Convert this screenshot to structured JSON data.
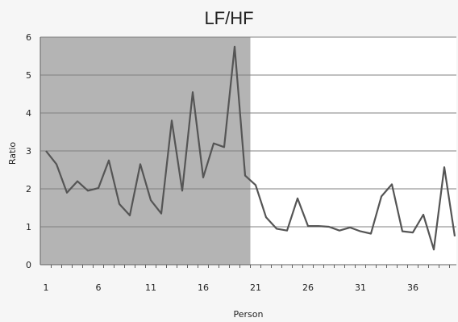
{
  "chart_data": {
    "type": "line",
    "title": "LF/HF",
    "xlabel": "Person",
    "ylabel": "Ratio",
    "ylim": [
      0,
      6
    ],
    "xlim": [
      1,
      40
    ],
    "yticks": [
      "0",
      "1",
      "2",
      "3",
      "4",
      "5",
      "6"
    ],
    "xticks": [
      "1",
      "6",
      "11",
      "16",
      "21",
      "26",
      "31",
      "36"
    ],
    "grid": true,
    "shaded_region": {
      "x_start": 0,
      "x_end": 20.5
    },
    "series": [
      {
        "x": [
          1,
          2,
          3,
          4,
          5,
          6,
          7,
          8,
          9,
          10,
          11,
          12,
          13,
          14,
          15,
          16,
          17,
          18,
          19,
          20,
          21,
          22,
          23,
          24,
          25,
          26,
          27,
          28,
          29,
          30,
          31,
          32,
          33,
          34,
          35,
          36,
          37,
          38,
          39,
          40
        ],
        "values": [
          3.0,
          2.65,
          1.9,
          2.2,
          1.95,
          2.02,
          2.75,
          1.6,
          1.3,
          2.65,
          1.7,
          1.35,
          3.8,
          1.95,
          4.55,
          2.3,
          3.2,
          3.1,
          5.75,
          2.35,
          2.1,
          1.25,
          0.95,
          0.9,
          1.75,
          1.02,
          1.02,
          1.0,
          0.9,
          0.98,
          0.88,
          0.82,
          1.8,
          2.12,
          0.88,
          0.85,
          1.32,
          0.4,
          2.57,
          0.75
        ]
      }
    ],
    "colors": {
      "line": "#555555",
      "shade": "#b4b4b4",
      "grid": "#808080"
    }
  }
}
